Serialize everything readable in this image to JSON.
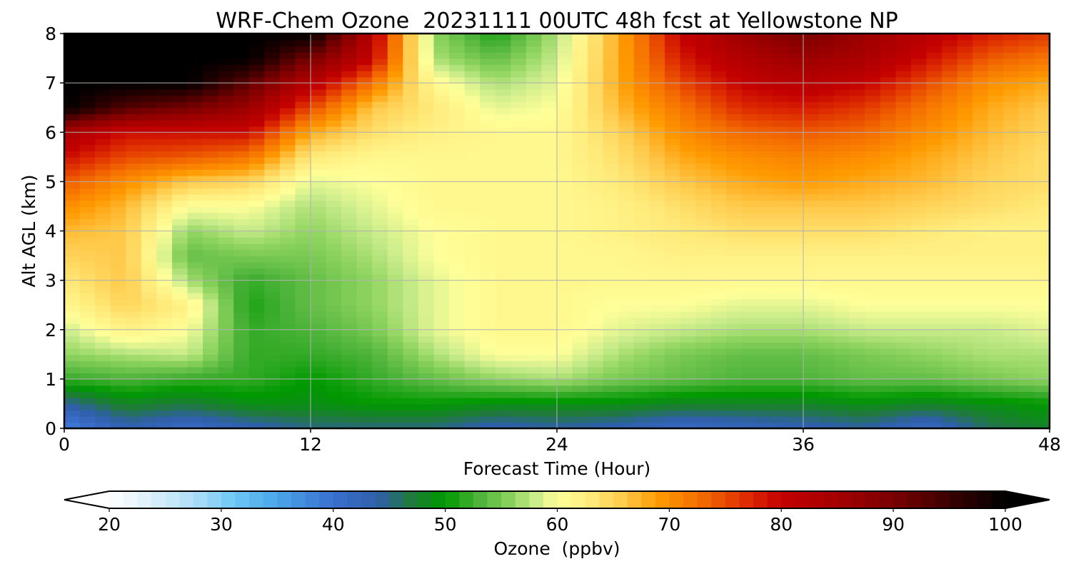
{
  "chart_data": {
    "type": "heatmap",
    "title": "WRF-Chem Ozone  20231111 00UTC 48h fcst at Yellowstone NP",
    "xlabel": "Forecast Time (Hour)",
    "ylabel": "Alt AGL (km)",
    "xlim": [
      0,
      48
    ],
    "ylim": [
      0,
      8
    ],
    "xticks": [
      0,
      12,
      24,
      36,
      48
    ],
    "yticks": [
      0,
      1,
      2,
      3,
      4,
      5,
      6,
      7,
      8
    ],
    "grid": true,
    "x": [
      0,
      3,
      6,
      9,
      12,
      15,
      18,
      21,
      24,
      27,
      30,
      33,
      36,
      39,
      42,
      45,
      48
    ],
    "y": [
      0,
      0.5,
      1,
      1.5,
      2,
      2.5,
      3,
      3.5,
      4,
      4.5,
      5,
      5.5,
      6,
      6.5,
      7,
      7.5,
      8
    ],
    "z": [
      [
        38,
        43,
        41,
        43,
        45,
        45,
        45,
        43,
        44,
        43,
        41,
        42,
        43,
        44,
        41,
        46,
        48
      ],
      [
        44,
        48,
        47,
        49,
        49,
        50,
        50,
        49,
        49,
        49,
        48,
        48,
        48,
        49,
        48,
        49,
        50
      ],
      [
        52,
        53,
        52,
        52,
        50,
        52,
        54,
        56,
        57,
        55,
        54,
        53,
        53,
        54,
        54,
        55,
        56
      ],
      [
        56,
        57,
        58,
        52,
        52,
        53,
        57,
        60,
        60,
        57,
        55,
        54,
        54,
        55,
        56,
        57,
        57
      ],
      [
        58,
        62,
        60,
        52,
        53,
        55,
        59,
        61,
        61,
        59,
        58,
        57,
        57,
        58,
        58,
        58,
        59
      ],
      [
        61,
        65,
        62,
        51,
        54,
        56,
        59,
        61,
        61,
        60,
        60,
        59,
        59,
        60,
        60,
        60,
        60
      ],
      [
        63,
        66,
        57,
        52,
        54,
        56,
        59,
        61,
        61,
        61,
        61,
        61,
        61,
        61,
        61,
        61,
        61
      ],
      [
        65,
        66,
        54,
        55,
        55,
        57,
        60,
        61,
        61,
        61,
        62,
        62,
        62,
        62,
        62,
        62,
        62
      ],
      [
        67,
        66,
        56,
        58,
        56,
        58,
        60,
        61,
        61,
        62,
        63,
        64,
        64,
        64,
        63,
        62,
        62
      ],
      [
        70,
        67,
        60,
        60,
        57,
        59,
        61,
        61,
        61,
        62,
        64,
        66,
        66,
        66,
        65,
        64,
        63
      ],
      [
        74,
        70,
        66,
        65,
        59,
        60,
        61,
        61,
        61,
        63,
        66,
        68,
        69,
        68,
        67,
        65,
        64
      ],
      [
        79,
        75,
        74,
        72,
        63,
        61,
        61,
        61,
        61,
        64,
        68,
        70,
        71,
        70,
        68,
        66,
        64
      ],
      [
        84,
        79,
        79,
        79,
        68,
        64,
        62,
        61,
        61,
        65,
        70,
        73,
        74,
        73,
        70,
        67,
        65
      ],
      [
        100,
        93,
        90,
        86,
        75,
        66,
        63,
        59,
        60,
        67,
        72,
        77,
        78,
        76,
        72,
        68,
        66
      ],
      [
        100,
        100,
        100,
        92,
        82,
        72,
        61,
        57,
        59,
        68,
        75,
        80,
        82,
        80,
        75,
        70,
        68
      ],
      [
        100,
        100,
        100,
        100,
        90,
        80,
        57,
        54,
        58,
        68,
        78,
        83,
        86,
        84,
        79,
        74,
        72
      ],
      [
        100,
        100,
        100,
        100,
        100,
        82,
        56,
        51,
        57,
        68,
        80,
        86,
        90,
        86,
        82,
        78,
        76
      ]
    ],
    "colorbar": {
      "label": "Ozone  (ppbv)",
      "min": 20,
      "max": 100,
      "ticks": [
        20,
        30,
        40,
        50,
        60,
        70,
        80,
        90,
        100
      ],
      "extend": "both",
      "orientation": "horizontal",
      "stops": [
        [
          20,
          "#ffffff"
        ],
        [
          24,
          "#d9eef9"
        ],
        [
          28,
          "#a8dcf7"
        ],
        [
          31,
          "#6fc8f5"
        ],
        [
          35,
          "#4aa6e8"
        ],
        [
          40,
          "#3a6fd0"
        ],
        [
          44,
          "#2f5fa8"
        ],
        [
          47,
          "#1f7a3a"
        ],
        [
          50,
          "#009900"
        ],
        [
          53,
          "#4db33a"
        ],
        [
          56,
          "#8fd460"
        ],
        [
          58,
          "#c8eb8a"
        ],
        [
          60,
          "#ffff99"
        ],
        [
          63,
          "#ffea7a"
        ],
        [
          66,
          "#ffc94a"
        ],
        [
          69,
          "#ff9a00"
        ],
        [
          73,
          "#f36a00"
        ],
        [
          77,
          "#dd2a00"
        ],
        [
          80,
          "#c40000"
        ],
        [
          85,
          "#a40000"
        ],
        [
          90,
          "#7a0000"
        ],
        [
          95,
          "#3a0000"
        ],
        [
          100,
          "#000000"
        ]
      ]
    }
  }
}
